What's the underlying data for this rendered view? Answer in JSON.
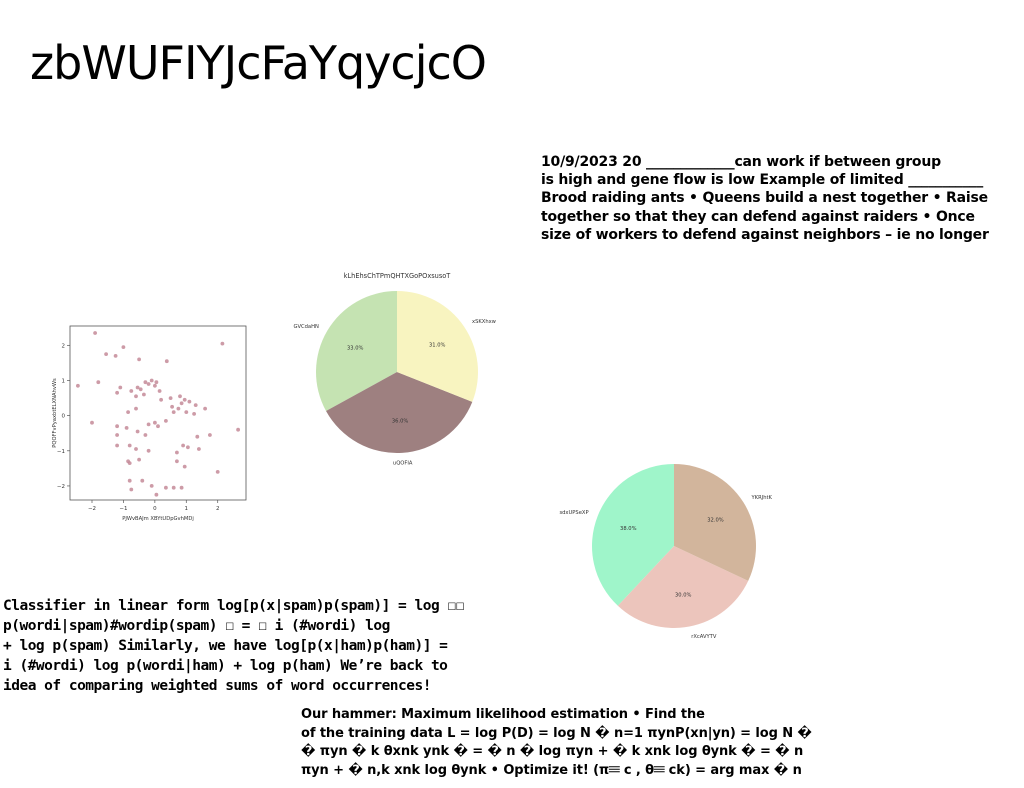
{
  "page": {
    "title": "zbWUFIYJcFaYqycjcO"
  },
  "ants_block": {
    "lines": [
      "10/9/2023 20 _____________can work if between group",
      "is high and gene flow is low Example of limited ___________",
      "Brood raiding ants • Queens build a nest together • Raise",
      "together so that they can defend against raiders • Once",
      "size of workers to defend against neighbors – ie no longer"
    ]
  },
  "classifier_block": {
    "lines": [
      "Classifier in linear form log[p(x|spam)p(spam)] = log ☐☐",
      "p(wordi|spam)#wordip(spam) ☐ = ☐ i (#wordi) log",
      "+ log p(spam) Similarly, we have log[p(x|ham)p(ham)] =",
      "i (#wordi) log p(wordi|ham) + log p(ham) We’re back to",
      "idea of comparing weighted sums of word occurrences!"
    ]
  },
  "hammer_block": {
    "lines": [
      "Our hammer: Maximum likelihood estimation • Find the",
      "of the training data L = log P(D) = log N � n=1 πynP(xn|yn) = log N �",
      "� πyn � k θxnk ynk � = � n � log πyn + � k xnk log θynk � = � n",
      "πyn + � n,k xnk log θynk • Optimize it! (π𝄘 c , θ𝄘 ck) = arg max � n"
    ]
  },
  "chart_data": [
    {
      "type": "scatter",
      "title": "",
      "xlabel": "PJWvBAJm XBYtUDpGvhMDj",
      "ylabel": "PQOFFvPyaxbtELXNAhvWs",
      "xlim": [
        -2.7,
        2.9
      ],
      "ylim": [
        -2.4,
        2.55
      ],
      "xticks": [
        -2,
        -1,
        0,
        1,
        2
      ],
      "yticks": [
        -2,
        -1,
        0,
        1,
        2
      ],
      "color": "#c48a98",
      "points": [
        [
          -1.9,
          2.35
        ],
        [
          -1.55,
          1.75
        ],
        [
          -1.25,
          1.7
        ],
        [
          -1.0,
          1.95
        ],
        [
          -0.5,
          1.6
        ],
        [
          0.38,
          1.55
        ],
        [
          2.15,
          2.05
        ],
        [
          -2.45,
          0.85
        ],
        [
          -1.8,
          0.95
        ],
        [
          -1.2,
          0.65
        ],
        [
          -1.1,
          0.8
        ],
        [
          -0.75,
          0.7
        ],
        [
          -0.55,
          0.8
        ],
        [
          -0.45,
          0.75
        ],
        [
          -0.3,
          0.95
        ],
        [
          -0.2,
          0.9
        ],
        [
          -0.1,
          1.0
        ],
        [
          0.0,
          0.85
        ],
        [
          0.05,
          0.95
        ],
        [
          0.15,
          0.7
        ],
        [
          -0.35,
          0.6
        ],
        [
          -0.6,
          0.55
        ],
        [
          0.2,
          0.45
        ],
        [
          0.5,
          0.5
        ],
        [
          0.8,
          0.55
        ],
        [
          0.95,
          0.45
        ],
        [
          1.1,
          0.4
        ],
        [
          1.3,
          0.3
        ],
        [
          1.6,
          0.2
        ],
        [
          0.85,
          0.35
        ],
        [
          0.55,
          0.25
        ],
        [
          0.6,
          0.1
        ],
        [
          0.75,
          0.2
        ],
        [
          1.0,
          0.1
        ],
        [
          1.25,
          0.05
        ],
        [
          0.35,
          -0.15
        ],
        [
          -0.6,
          0.2
        ],
        [
          -0.85,
          0.1
        ],
        [
          -2.0,
          -0.2
        ],
        [
          -1.2,
          -0.3
        ],
        [
          -0.9,
          -0.35
        ],
        [
          -0.55,
          -0.45
        ],
        [
          -0.2,
          -0.25
        ],
        [
          0.0,
          -0.2
        ],
        [
          0.1,
          -0.3
        ],
        [
          -0.3,
          -0.55
        ],
        [
          -1.2,
          -0.55
        ],
        [
          1.75,
          -0.55
        ],
        [
          1.35,
          -0.6
        ],
        [
          0.9,
          -0.85
        ],
        [
          1.05,
          -0.9
        ],
        [
          1.4,
          -0.95
        ],
        [
          -1.2,
          -0.85
        ],
        [
          -0.8,
          -0.85
        ],
        [
          -0.6,
          -0.95
        ],
        [
          -0.2,
          -1.0
        ],
        [
          0.7,
          -1.05
        ],
        [
          2.65,
          -0.4
        ],
        [
          -0.85,
          -1.3
        ],
        [
          -0.8,
          -1.35
        ],
        [
          -0.5,
          -1.25
        ],
        [
          0.7,
          -1.3
        ],
        [
          0.95,
          -1.45
        ],
        [
          2.0,
          -1.6
        ],
        [
          -0.8,
          -1.85
        ],
        [
          -0.4,
          -1.85
        ],
        [
          -0.1,
          -2.0
        ],
        [
          0.35,
          -2.05
        ],
        [
          0.6,
          -2.05
        ],
        [
          0.85,
          -2.05
        ],
        [
          -0.75,
          -2.1
        ],
        [
          0.05,
          -2.25
        ]
      ]
    },
    {
      "type": "pie",
      "title": "kLhEhsChTPmQHTXGoPOxsusoT",
      "slices": [
        {
          "label": "GVCdaHN",
          "value": 33.0,
          "color": "#c5e3b2"
        },
        {
          "label": "uQOFIA",
          "value": 36.0,
          "color": "#9e8080"
        },
        {
          "label": "xSKXhxw",
          "value": 31.0,
          "color": "#f8f4c0"
        }
      ],
      "autopct": [
        "33.0%",
        "36.0%",
        "31.0%"
      ]
    },
    {
      "type": "pie",
      "title": "",
      "slices": [
        {
          "label": "sdxUPSeXP",
          "value": 38.0,
          "color": "#9ff5ca"
        },
        {
          "label": "rXcAVYTV",
          "value": 30.0,
          "color": "#ecc5bc"
        },
        {
          "label": "YKRJhtK",
          "value": 32.0,
          "color": "#d2b59c"
        }
      ],
      "autopct": [
        "38.0%",
        "30.0%",
        "32.0%"
      ]
    }
  ]
}
